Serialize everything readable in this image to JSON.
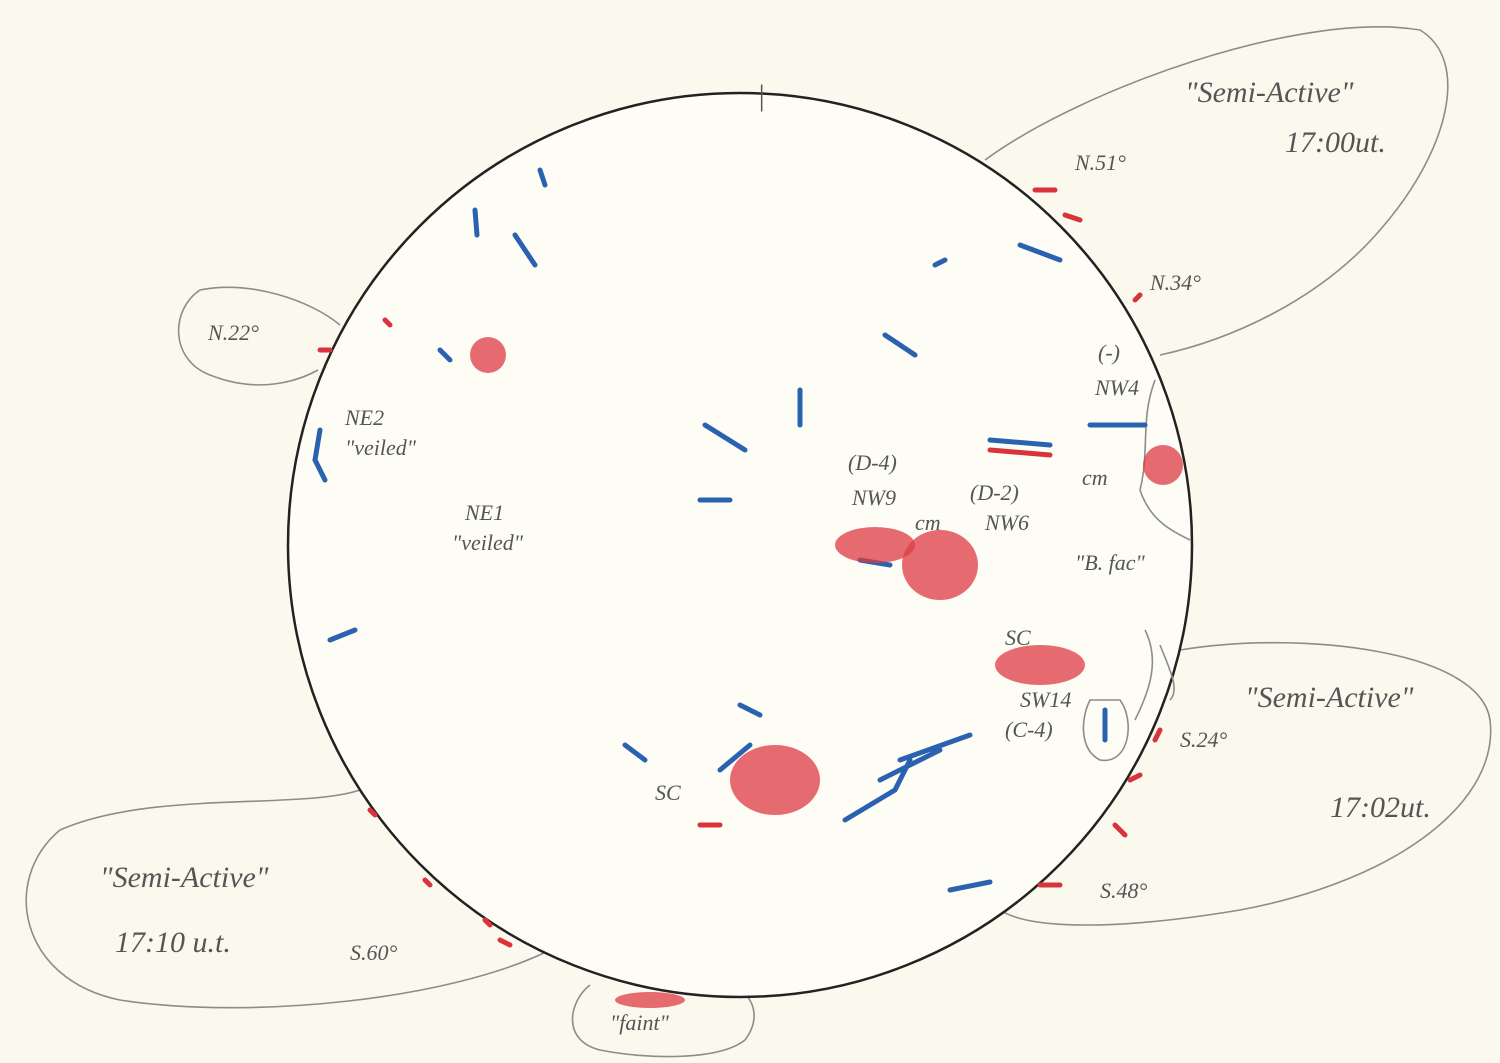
{
  "north_marker": "|",
  "regions": {
    "north_east": {
      "label": "\"Semi-Active\"",
      "time": "17:00ut.",
      "latitudes": [
        "N.51°",
        "N.34°"
      ]
    },
    "east": {
      "latitudes": [
        "N.22°"
      ]
    },
    "south_east": {
      "label": "\"Semi-Active\"",
      "time": "17:02ut.",
      "latitudes": [
        "S.24°",
        "S.48°"
      ]
    },
    "south_west": {
      "label": "\"Semi-Active\"",
      "time": "17:10 u.t.",
      "latitudes": [
        "S.60°"
      ]
    },
    "south": {
      "label": "\"faint\""
    }
  },
  "features": {
    "ne2": {
      "name": "NE2",
      "note": "\"veiled\""
    },
    "ne1": {
      "name": "NE1",
      "note": "\"veiled\""
    },
    "nw9": {
      "class": "(D-4)",
      "name": "NW9"
    },
    "nw6": {
      "mark": "cm",
      "class": "(D-2)",
      "name": "NW6"
    },
    "nw4": {
      "class": "(-)",
      "name": "NW4"
    },
    "cm_right": {
      "mark": "cm"
    },
    "bfac": {
      "name": "\"B. fac\""
    },
    "sw14": {
      "mark": "SC",
      "name": "SW14",
      "class": "(C-4)"
    },
    "sc_bottom": {
      "mark": "SC"
    }
  }
}
